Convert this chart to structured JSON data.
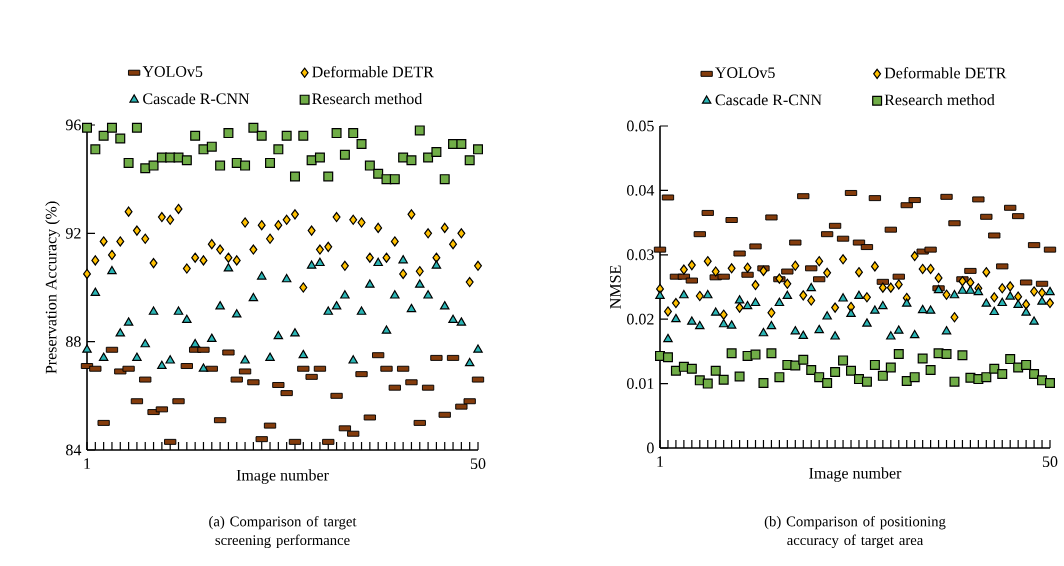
{
  "chart_data": [
    {
      "type": "scatter",
      "title": "(a) Comparison of target screening performance",
      "xlabel": "Image number",
      "ylabel": "Preservation Accuracy (%)",
      "categories": [
        "1",
        null,
        null,
        null,
        null,
        null,
        null,
        null,
        null,
        null,
        null,
        null,
        null,
        null,
        null,
        null,
        null,
        null,
        null,
        null,
        null,
        null,
        null,
        null,
        null,
        null,
        null,
        null,
        null,
        null,
        null,
        null,
        null,
        null,
        null,
        null,
        null,
        null,
        null,
        null,
        null,
        null,
        null,
        null,
        null,
        null,
        null,
        "50"
      ],
      "ylim": [
        84,
        96
      ],
      "yticks": [
        84,
        88,
        92,
        96
      ],
      "legend": "top",
      "series": [
        {
          "name": "YOLOv5",
          "color": "#843c0c",
          "marker": "square",
          "values": [
            87.1,
            87.0,
            85.0,
            87.7,
            86.9,
            87.0,
            85.8,
            86.6,
            85.4,
            85.5,
            84.3,
            85.8,
            87.1,
            87.7,
            87.7,
            87.0,
            85.1,
            87.6,
            86.6,
            86.9,
            86.5,
            84.4,
            84.9,
            86.4,
            86.1,
            84.3,
            87.0,
            86.7,
            87.0,
            84.3,
            86.0,
            84.8,
            84.6,
            86.8,
            85.2,
            87.5,
            87.0,
            86.3,
            87.0,
            86.5,
            85.0,
            86.3,
            87.4,
            85.3,
            87.4,
            85.6,
            85.8,
            86.6
          ]
        },
        {
          "name": "Deformable DETR",
          "color": "#ffc000",
          "marker": "diamond",
          "values": [
            90.5,
            91.0,
            91.7,
            91.2,
            91.7,
            92.8,
            92.1,
            91.8,
            90.9,
            92.6,
            92.5,
            92.9,
            90.7,
            91.1,
            91.0,
            91.6,
            91.4,
            91.1,
            91.0,
            92.4,
            91.4,
            92.3,
            91.8,
            92.3,
            92.5,
            92.7,
            90.0,
            92.1,
            91.4,
            91.5,
            92.6,
            90.8,
            92.5,
            92.4,
            91.1,
            92.2,
            91.1,
            91.7,
            90.5,
            92.7,
            90.6,
            92.0,
            91.1,
            92.2,
            91.6,
            92.0,
            90.2,
            90.8
          ]
        },
        {
          "name": "Cascade R-CNN",
          "color": "#2ab5b5",
          "marker": "triangle",
          "values": [
            87.7,
            89.8,
            87.4,
            90.6,
            88.3,
            88.7,
            87.4,
            87.9,
            89.1,
            87.1,
            87.3,
            89.1,
            88.8,
            87.9,
            87.0,
            88.1,
            89.3,
            90.7,
            89.0,
            87.3,
            89.6,
            90.4,
            87.4,
            88.2,
            90.3,
            88.3,
            87.5,
            90.8,
            90.9,
            89.1,
            89.3,
            89.7,
            87.3,
            89.1,
            90.1,
            90.9,
            88.4,
            89.7,
            91.0,
            89.2,
            90.1,
            89.7,
            90.8,
            89.3,
            88.8,
            88.7,
            87.2,
            87.7
          ]
        },
        {
          "name": "Research method",
          "color": "#70ad47",
          "marker": "square",
          "values": [
            95.9,
            95.1,
            95.6,
            95.9,
            95.5,
            94.6,
            95.9,
            94.4,
            94.5,
            94.8,
            94.8,
            94.8,
            94.7,
            95.6,
            95.1,
            95.2,
            94.5,
            95.7,
            94.6,
            94.5,
            95.9,
            95.6,
            94.6,
            95.1,
            95.6,
            94.1,
            95.6,
            94.7,
            94.8,
            94.1,
            95.7,
            94.9,
            95.7,
            95.3,
            94.5,
            94.2,
            94.0,
            94.0,
            94.8,
            94.7,
            95.8,
            94.8,
            95.0,
            94.0,
            95.3,
            95.3,
            94.7,
            95.1
          ]
        }
      ]
    },
    {
      "type": "scatter",
      "title": "(b) Comparison of positioning accuracy of target area",
      "xlabel": "Image number",
      "ylabel": "NMSE",
      "categories": [
        "1",
        null,
        null,
        null,
        null,
        null,
        null,
        null,
        null,
        null,
        null,
        null,
        null,
        null,
        null,
        null,
        null,
        null,
        null,
        null,
        null,
        null,
        null,
        null,
        null,
        null,
        null,
        null,
        null,
        null,
        null,
        null,
        null,
        null,
        null,
        null,
        null,
        null,
        null,
        null,
        null,
        null,
        null,
        null,
        null,
        null,
        null,
        null,
        null,
        "50"
      ],
      "ylim": [
        0,
        0.05
      ],
      "yticks": [
        0,
        0.01,
        0.02,
        0.03,
        0.04,
        0.05
      ],
      "legend": "top",
      "series": [
        {
          "name": "YOLOv5",
          "color": "#843c0c",
          "marker": "square",
          "values": [
            0.0308,
            0.0389,
            0.0266,
            0.0266,
            0.026,
            0.0332,
            0.0365,
            0.0265,
            0.0266,
            0.0354,
            0.0302,
            0.0269,
            0.0313,
            0.0279,
            0.0358,
            0.0262,
            0.0274,
            0.0319,
            0.0391,
            0.0279,
            0.0262,
            0.0332,
            0.0345,
            0.0325,
            0.0396,
            0.0319,
            0.0312,
            0.0388,
            0.0258,
            0.0339,
            0.0266,
            0.0377,
            0.0385,
            0.0305,
            0.0308,
            0.0248,
            0.039,
            0.0349,
            0.0262,
            0.0275,
            0.0386,
            0.0359,
            0.033,
            0.0282,
            0.0373,
            0.036,
            0.0257,
            0.0315,
            0.0255,
            0.0308
          ]
        },
        {
          "name": "Deformable DETR",
          "color": "#ffc000",
          "marker": "diamond",
          "values": [
            0.0247,
            0.0212,
            0.0225,
            0.0277,
            0.0284,
            0.0236,
            0.029,
            0.0274,
            0.0207,
            0.0279,
            0.0218,
            0.028,
            0.0253,
            0.0275,
            0.021,
            0.0263,
            0.0255,
            0.0283,
            0.0237,
            0.0229,
            0.029,
            0.0272,
            0.0218,
            0.0293,
            0.0219,
            0.0273,
            0.0234,
            0.0282,
            0.0249,
            0.0249,
            0.0254,
            0.0233,
            0.0298,
            0.0278,
            0.0278,
            0.0264,
            0.0238,
            0.0203,
            0.0259,
            0.0257,
            0.0248,
            0.0273,
            0.0234,
            0.0248,
            0.0251,
            0.0235,
            0.0223,
            0.0243,
            0.0241,
            0.0225
          ]
        },
        {
          "name": "Cascade R-CNN",
          "color": "#2ab5b5",
          "marker": "triangle",
          "values": [
            0.0236,
            0.0169,
            0.02,
            0.0237,
            0.0196,
            0.0189,
            0.0237,
            0.021,
            0.0192,
            0.019,
            0.0229,
            0.022,
            0.0225,
            0.0178,
            0.0189,
            0.0225,
            0.0236,
            0.0181,
            0.0174,
            0.0248,
            0.0183,
            0.0204,
            0.0173,
            0.0232,
            0.0208,
            0.0236,
            0.0193,
            0.0213,
            0.022,
            0.0173,
            0.0182,
            0.0224,
            0.0175,
            0.0214,
            0.0213,
            0.0245,
            0.0181,
            0.0237,
            0.0244,
            0.0244,
            0.0242,
            0.0224,
            0.0211,
            0.0225,
            0.0235,
            0.0222,
            0.021,
            0.0196,
            0.0227,
            0.0242
          ]
        },
        {
          "name": "Research method",
          "color": "#70ad47",
          "marker": "square",
          "values": [
            0.0143,
            0.0141,
            0.012,
            0.0126,
            0.0123,
            0.0105,
            0.01,
            0.012,
            0.0106,
            0.0147,
            0.0111,
            0.0143,
            0.0145,
            0.0101,
            0.0147,
            0.011,
            0.0129,
            0.0128,
            0.0137,
            0.0121,
            0.011,
            0.0101,
            0.0118,
            0.0136,
            0.012,
            0.0107,
            0.0103,
            0.0129,
            0.0112,
            0.0125,
            0.0146,
            0.0104,
            0.011,
            0.0139,
            0.0121,
            0.0147,
            0.0146,
            0.0103,
            0.0144,
            0.0109,
            0.0107,
            0.011,
            0.0123,
            0.0115,
            0.0138,
            0.0125,
            0.0129,
            0.0115,
            0.0105,
            0.0101
          ]
        }
      ]
    }
  ]
}
